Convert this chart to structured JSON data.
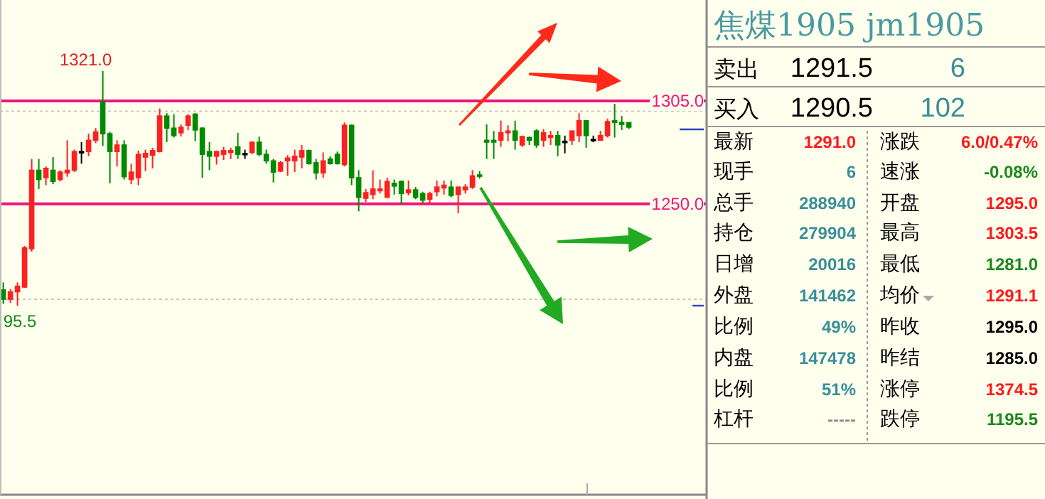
{
  "chart_data": [
    {
      "type": "candlestick",
      "categories": [
        null,
        null,
        null,
        null,
        null,
        null,
        null,
        null,
        null,
        null,
        null,
        null,
        null,
        null,
        null,
        null,
        null,
        null,
        null,
        null,
        null,
        null,
        null,
        null,
        null,
        null,
        null,
        null,
        null,
        null,
        null,
        null,
        null,
        null,
        null,
        null,
        null,
        null,
        null,
        null,
        null,
        null,
        null,
        null,
        null,
        null,
        null,
        null,
        null,
        null,
        null,
        null,
        null,
        null,
        null,
        null,
        null,
        null,
        null,
        null,
        null,
        null,
        null,
        null,
        null,
        null,
        null,
        null,
        null,
        null,
        null,
        null,
        null,
        null,
        null,
        null,
        null,
        null,
        null,
        null,
        null,
        null,
        null,
        null,
        null,
        null,
        null,
        null,
        null
      ],
      "ohlc": [
        [
          1204,
          1208,
          1196.5,
          1199
        ],
        [
          1199,
          1204.5,
          1197,
          1203
        ],
        [
          1203,
          1208,
          1195.5,
          1206
        ],
        [
          1205.5,
          1227.5,
          1205,
          1226.5
        ],
        [
          1226,
          1274,
          1224.5,
          1268
        ],
        [
          1268,
          1274,
          1258,
          1263
        ],
        [
          1264,
          1270,
          1260,
          1269
        ],
        [
          1268,
          1275,
          1260.5,
          1262
        ],
        [
          1263,
          1268,
          1262,
          1267
        ],
        [
          1266.5,
          1284,
          1264.5,
          1268
        ],
        [
          1268,
          1279,
          1267,
          1278
        ],
        [
          1278,
          1283,
          1271.5,
          1278
        ],
        [
          1278,
          1287.5,
          1275.5,
          1284
        ],
        [
          1284,
          1290.5,
          1282.5,
          1288.5
        ],
        [
          1304.5,
          1321,
          1281,
          1287.5
        ],
        [
          1287.5,
          1288.5,
          1261,
          1278
        ],
        [
          1278,
          1284,
          1270,
          1281.5
        ],
        [
          1281.5,
          1284,
          1263,
          1264.5
        ],
        [
          1263,
          1271.5,
          1260.5,
          1267
        ],
        [
          1264,
          1278.5,
          1260,
          1276.5
        ],
        [
          1275,
          1279,
          1267.5,
          1277
        ],
        [
          1276,
          1280,
          1269,
          1278.5
        ],
        [
          1278,
          1301,
          1277.5,
          1297
        ],
        [
          1297,
          1298.5,
          1283,
          1290.5
        ],
        [
          1290.5,
          1298,
          1285.5,
          1286.5
        ],
        [
          1288,
          1292.5,
          1286,
          1291
        ],
        [
          1292,
          1298,
          1289.5,
          1297
        ],
        [
          1298,
          1298.5,
          1283.5,
          1289.5
        ],
        [
          1290.5,
          1291,
          1264,
          1276.5
        ],
        [
          1278,
          1283,
          1268,
          1275.5
        ],
        [
          1275.5,
          1278.5,
          1271,
          1278
        ],
        [
          1276.5,
          1280.5,
          1273.5,
          1278.5
        ],
        [
          1277.5,
          1280,
          1274,
          1278.5
        ],
        [
          1280.5,
          1288,
          1274,
          1276.5
        ],
        [
          1277,
          1279,
          1274,
          1277
        ],
        [
          1277.5,
          1283.5,
          1276.5,
          1283
        ],
        [
          1283,
          1286,
          1275.5,
          1276.5
        ],
        [
          1276.5,
          1279,
          1271.5,
          1273
        ],
        [
          1273,
          1274,
          1261.5,
          1267
        ],
        [
          1267.5,
          1273,
          1267,
          1272
        ],
        [
          1273,
          1276,
          1265,
          1274.5
        ],
        [
          1273,
          1279,
          1267,
          1275.5
        ],
        [
          1275,
          1281.5,
          1269,
          1278.5
        ],
        [
          1278.5,
          1279,
          1271,
          1271.5
        ],
        [
          1272,
          1274,
          1263,
          1266.5
        ],
        [
          1266.5,
          1277.5,
          1264,
          1273
        ],
        [
          1274,
          1275.5,
          1271,
          1271.5
        ],
        [
          1276.5,
          1278,
          1271,
          1271.5
        ],
        [
          1271,
          1293.5,
          1270,
          1292
        ],
        [
          1292,
          1292.5,
          1260,
          1264
        ],
        [
          1264,
          1268,
          1246,
          1253.5
        ],
        [
          1253,
          1258,
          1251,
          1256
        ],
        [
          1255,
          1268,
          1252.5,
          1258
        ],
        [
          1257,
          1263,
          1255.5,
          1258
        ],
        [
          1253.5,
          1264,
          1253.5,
          1262
        ],
        [
          1261,
          1263,
          1255,
          1259.5
        ],
        [
          1262,
          1262.5,
          1250,
          1255.5
        ],
        [
          1256,
          1262.5,
          1254.5,
          1257.5
        ],
        [
          1257.5,
          1259,
          1252.5,
          1253.5
        ],
        [
          1255.5,
          1256.5,
          1250.5,
          1252
        ],
        [
          1252.5,
          1256.5,
          1250,
          1255.5
        ],
        [
          1256.5,
          1262.5,
          1254,
          1259
        ],
        [
          1258.5,
          1262.5,
          1255,
          1260
        ],
        [
          1259,
          1262.5,
          1253.5,
          1254.5
        ],
        [
          1255,
          1259,
          1245,
          1259
        ],
        [
          1257.5,
          1260.5,
          1255.5,
          1259
        ],
        [
          1259,
          1268,
          1258,
          1265
        ],
        [
          1265.5,
          1267.5,
          1263.5,
          1265
        ],
        [
          1284,
          1292.5,
          1274,
          1283
        ],
        [
          1284,
          1289,
          1274,
          1283
        ],
        [
          1284,
          1294.5,
          1280.5,
          1288
        ],
        [
          1288,
          1292,
          1283.5,
          1289
        ],
        [
          1289,
          1294.5,
          1279,
          1284
        ],
        [
          1281.5,
          1286.5,
          1280.5,
          1286
        ],
        [
          1285.5,
          1286,
          1281.5,
          1284
        ],
        [
          1289,
          1290,
          1280,
          1281.5
        ],
        [
          1284,
          1290,
          1280.5,
          1288
        ],
        [
          1285.5,
          1289,
          1281.5,
          1286.5
        ],
        [
          1286.5,
          1289,
          1275.5,
          1281.5
        ],
        [
          1283.5,
          1286.5,
          1277,
          1283.5
        ],
        [
          1284,
          1289,
          1281.5,
          1289
        ],
        [
          1286.5,
          1298.5,
          1283,
          1294.5
        ],
        [
          1294.5,
          1294.5,
          1280,
          1286.5
        ],
        [
          1284.5,
          1286.5,
          1283,
          1284.5
        ],
        [
          1284,
          1289,
          1284,
          1286.5
        ],
        [
          1286.5,
          1295.5,
          1285.5,
          1294
        ],
        [
          1294.5,
          1303.5,
          1285.5,
          1293.5
        ],
        [
          1293.5,
          1297,
          1289.5,
          1292.5
        ],
        [
          1293.5,
          1293.5,
          1290,
          1291
        ]
      ],
      "ylim": [
        1094.5,
        1359
      ],
      "yticks": [
        {
          "value": 1305,
          "label": "1305.0"
        },
        {
          "value": 1250,
          "label": "1250.0"
        }
      ],
      "ref_lines": [
        {
          "axis": "y",
          "value": 1305,
          "color": "#f0147c",
          "line_style": "solid"
        },
        {
          "axis": "y",
          "value": 1250,
          "color": "#f0147c",
          "line_style": "solid"
        },
        {
          "axis": "y",
          "value": 1299.5,
          "color": "#c8c8c8",
          "line_style": "dotted"
        },
        {
          "axis": "y",
          "value": 1199,
          "color": "#c8c8c8",
          "line_style": "dotted"
        }
      ],
      "annotations": [
        "1321.0",
        "95.5"
      ]
    },
    {
      "type": "other",
      "title": "焦煤1905  jm1905",
      "annotations": [
        "卖出",
        "1291.5",
        "6",
        "买入",
        "1290.5",
        "102",
        "最新",
        "1291.0",
        "涨跌",
        "6.0/0.47%",
        "现手",
        "6",
        "速涨",
        "-0.08%",
        "总手",
        "288940",
        "开盘",
        "1295.0",
        "持仓",
        "279904",
        "最高",
        "1303.5",
        "日增",
        "20016",
        "最低",
        "1281.0",
        "外盘",
        "141462",
        "均价",
        "1291.1",
        "比例",
        "49%",
        "昨收",
        "1295.0",
        "内盘",
        "147478",
        "昨结",
        "1285.0",
        "比例",
        "51%",
        "涨停",
        "1374.5",
        "杠杆",
        "-----",
        "跌停",
        "1195.5"
      ],
      "colors": [
        "#000000",
        "#000000",
        "#3a8f9a",
        "#000000",
        "#000000",
        "#3a8f9a",
        "#000000",
        "#ff1a1a",
        "#000000",
        "#ff1a1a",
        "#000000",
        "#3a8f9a",
        "#000000",
        "#1a8a1a",
        "#000000",
        "#3a8f9a",
        "#000000",
        "#ff1a1a",
        "#000000",
        "#3a8f9a",
        "#000000",
        "#ff1a1a",
        "#000000",
        "#3a8f9a",
        "#000000",
        "#1a8a1a",
        "#000000",
        "#3a8f9a",
        "#000000",
        "#ff1a1a",
        "#000000",
        "#3a8f9a",
        "#000000",
        "#000000",
        "#000000",
        "#3a8f9a",
        "#000000",
        "#000000",
        "#000000",
        "#3a8f9a",
        "#000000",
        "#ff1a1a",
        "#000000",
        "#8a8a8a",
        "#000000",
        "#1a8a1a"
      ]
    }
  ]
}
